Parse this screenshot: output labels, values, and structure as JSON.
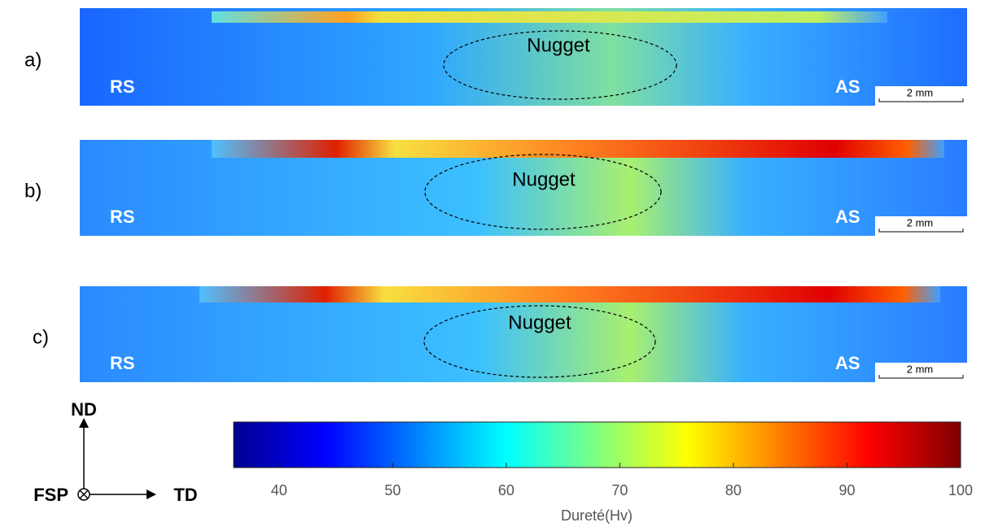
{
  "panels": [
    {
      "label": "a)",
      "region": "Nugget",
      "left": "RS",
      "right": "AS",
      "scale": "2 mm"
    },
    {
      "label": "b)",
      "region": "Nugget",
      "left": "RS",
      "right": "AS",
      "scale": "2 mm"
    },
    {
      "label": "c)",
      "region": "Nugget",
      "left": "RS",
      "right": "AS",
      "scale": "2 mm"
    }
  ],
  "colorbar": {
    "range": [
      36,
      100
    ],
    "ticks": [
      40,
      50,
      60,
      70,
      80,
      90,
      100
    ],
    "label": "Dureté(Hv)"
  },
  "axes": {
    "up": "ND",
    "right": "TD",
    "normal": "FSP"
  }
}
